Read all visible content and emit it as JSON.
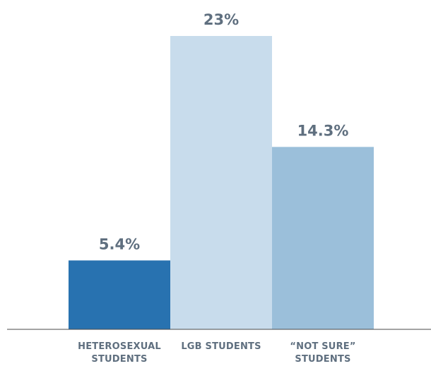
{
  "chart_data": {
    "type": "bar",
    "categories": [
      [
        "HETEROSEXUAL",
        "STUDENTS"
      ],
      [
        "LGB STUDENTS"
      ],
      [
        "“NOT SURE”",
        "STUDENTS"
      ]
    ],
    "values": [
      5.4,
      23,
      14.3
    ],
    "value_labels": [
      "5.4%",
      "23%",
      "14.3%"
    ],
    "colors": [
      "#2872b0",
      "#c8dcec",
      "#9bbfda"
    ],
    "ylim": [
      0,
      23
    ],
    "grid": false,
    "legend": "none"
  }
}
